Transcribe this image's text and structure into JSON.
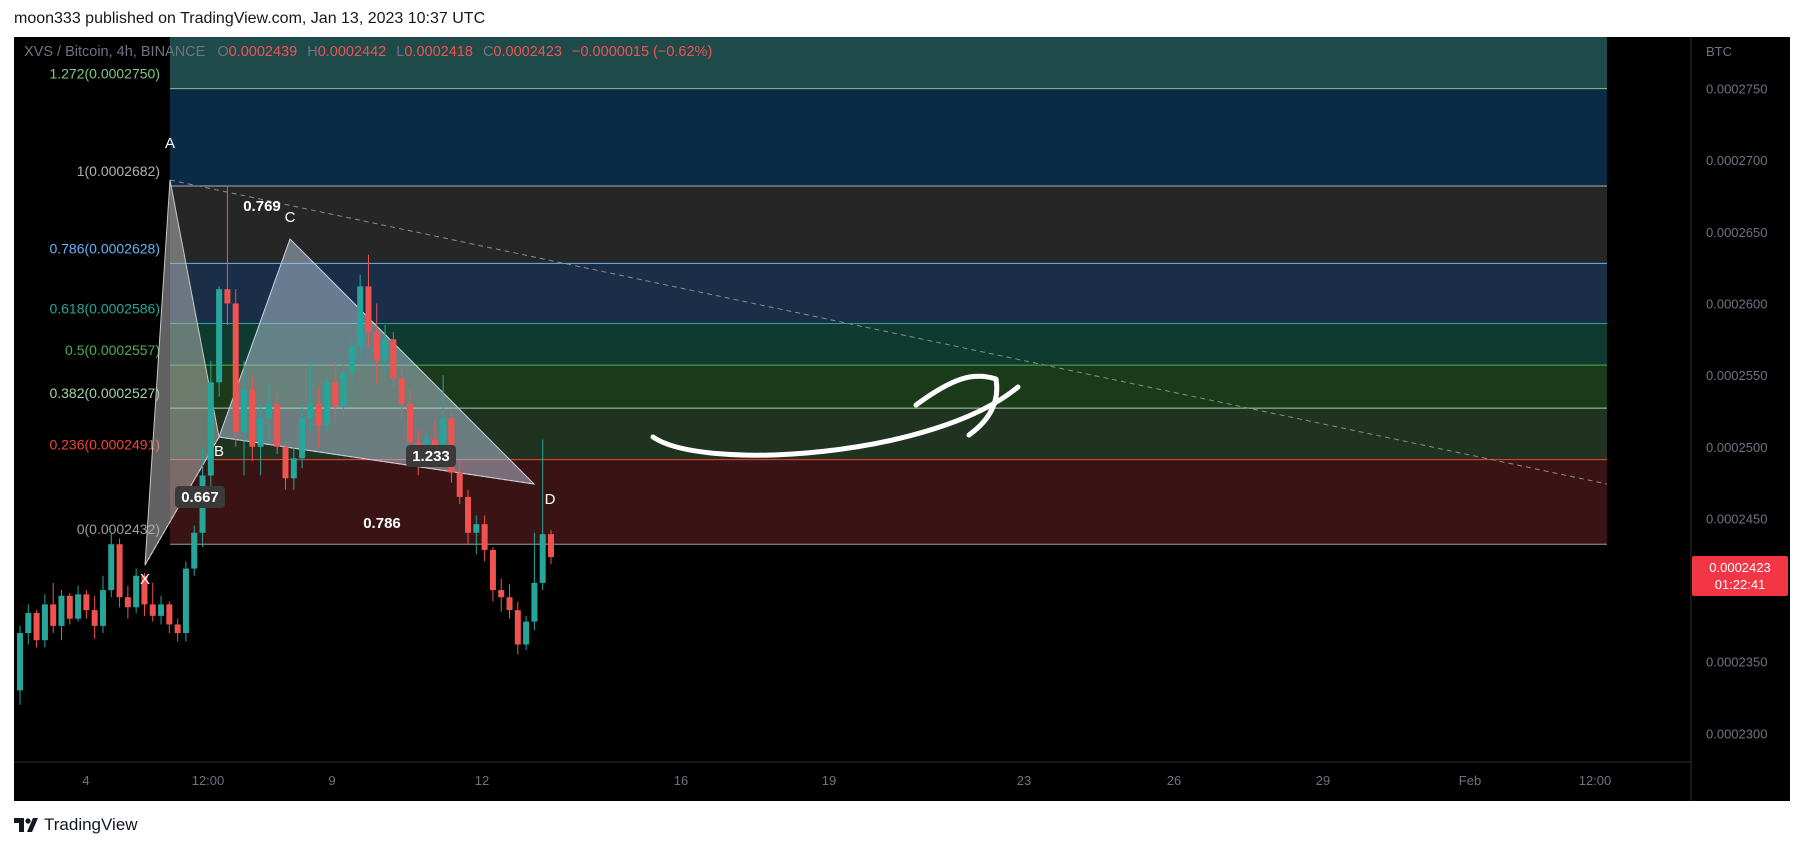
{
  "header": {
    "published_text": "moon333 published on TradingView.com, Jan 13, 2023 10:37 UTC"
  },
  "footer": {
    "brand": "TradingView"
  },
  "legend": {
    "symbol": "XVS / Bitcoin, 4h, BINANCE",
    "o_label": "O",
    "o_value": "0.0002439",
    "h_label": "H",
    "h_value": "0.0002442",
    "l_label": "L",
    "l_value": "0.0002418",
    "c_label": "C",
    "c_value": "0.0002423",
    "change": "−0.0000015 (−0.62%)"
  },
  "colors": {
    "up": "#26a69a",
    "down": "#ef5350",
    "background": "#000000",
    "price_badge": "#f23645"
  },
  "chart_data": {
    "type": "candlestick",
    "currency_label": "BTC",
    "ylim": [
      0.000228,
      0.0002786
    ],
    "y_ticks": [
      "0.0002750",
      "0.0002700",
      "0.0002650",
      "0.0002600",
      "0.0002550",
      "0.0002500",
      "0.0002450",
      "0.0002400",
      "0.0002350",
      "0.0002300"
    ],
    "x_ticks": [
      "4",
      "12:00",
      "9",
      "12",
      "16",
      "19",
      "23",
      "26",
      "29",
      "Feb",
      "12:00"
    ],
    "last_price": "0.0002423",
    "countdown": "01:22:41",
    "fib_levels": [
      {
        "ratio": "1.272",
        "price": "0.0002750",
        "label": "1.272(0.0002750)",
        "color": "#81c784"
      },
      {
        "ratio": "1",
        "price": "0.0002682",
        "label": "1(0.0002682)",
        "color": "#b0b0b0"
      },
      {
        "ratio": "0.786",
        "price": "0.0002628",
        "label": "0.786(0.0002628)",
        "color": "#64b5f6"
      },
      {
        "ratio": "0.618",
        "price": "0.0002586",
        "label": "0.618(0.0002586)",
        "color": "#26a69a"
      },
      {
        "ratio": "0.5",
        "price": "0.0002557",
        "label": "0.5(0.0002557)",
        "color": "#4caf50"
      },
      {
        "ratio": "0.382",
        "price": "0.0002527",
        "label": "0.382(0.0002527)",
        "color": "#a5d6a7"
      },
      {
        "ratio": "0.236",
        "price": "0.0002491",
        "label": "0.236(0.0002491)",
        "color": "#f44336"
      },
      {
        "ratio": "0",
        "price": "0.0002432",
        "label": "0(0.0002432)",
        "color": "#9e9e9e"
      }
    ],
    "pattern_points": [
      {
        "label": "X",
        "price": 0.0002363
      },
      {
        "label": "A",
        "price": 0.0002682
      },
      {
        "label": "B",
        "price": 0.000247
      },
      {
        "label": "C",
        "price": 0.0002634
      },
      {
        "label": "D",
        "price": 0.0002432
      }
    ],
    "pattern_ratios": [
      "0.667",
      "0.769",
      "0.786",
      "1.233"
    ],
    "candles": [
      [
        0.000233,
        0.0002375,
        0.000232,
        0.000237
      ],
      [
        0.000237,
        0.000239,
        0.0002362,
        0.0002384
      ],
      [
        0.0002384,
        0.0002386,
        0.000236,
        0.0002365
      ],
      [
        0.0002365,
        0.0002397,
        0.000236,
        0.000239
      ],
      [
        0.000239,
        0.0002405,
        0.000237,
        0.0002375
      ],
      [
        0.0002375,
        0.00024,
        0.0002365,
        0.0002396
      ],
      [
        0.0002396,
        0.0002398,
        0.0002376,
        0.000238
      ],
      [
        0.000238,
        0.0002403,
        0.0002378,
        0.0002397
      ],
      [
        0.0002397,
        0.00024,
        0.000238,
        0.0002386
      ],
      [
        0.0002386,
        0.0002396,
        0.0002366,
        0.0002375
      ],
      [
        0.0002375,
        0.000241,
        0.000237,
        0.00024
      ],
      [
        0.00024,
        0.000244,
        0.0002395,
        0.0002432
      ],
      [
        0.0002432,
        0.0002436,
        0.0002388,
        0.0002395
      ],
      [
        0.0002395,
        0.0002403,
        0.000238,
        0.0002388
      ],
      [
        0.0002388,
        0.0002415,
        0.0002384,
        0.000241
      ],
      [
        0.000241,
        0.0002412,
        0.0002382,
        0.000239
      ],
      [
        0.000239,
        0.0002405,
        0.0002378,
        0.0002382
      ],
      [
        0.0002382,
        0.0002396,
        0.0002376,
        0.000239
      ],
      [
        0.000239,
        0.0002392,
        0.000237,
        0.0002376
      ],
      [
        0.0002376,
        0.000238,
        0.0002364,
        0.000237
      ],
      [
        0.000237,
        0.000242,
        0.0002364,
        0.0002415
      ],
      [
        0.0002415,
        0.0002445,
        0.000241,
        0.000244
      ],
      [
        0.000244,
        0.00025,
        0.000243,
        0.000248
      ],
      [
        0.000248,
        0.000256,
        0.000247,
        0.0002545
      ],
      [
        0.0002545,
        0.0002612,
        0.0002535,
        0.000261
      ],
      [
        0.000261,
        0.0002682,
        0.0002585,
        0.00026
      ],
      [
        0.00026,
        0.000261,
        0.00025,
        0.000251
      ],
      [
        0.000251,
        0.000256,
        0.000248,
        0.000254
      ],
      [
        0.000254,
        0.000255,
        0.000249,
        0.00025
      ],
      [
        0.00025,
        0.000253,
        0.000248,
        0.000252
      ],
      [
        0.000252,
        0.0002545,
        0.0002505,
        0.000253
      ],
      [
        0.000253,
        0.0002538,
        0.0002495,
        0.00025
      ],
      [
        0.00025,
        0.0002505,
        0.000247,
        0.0002478
      ],
      [
        0.0002478,
        0.00025,
        0.000247,
        0.0002492
      ],
      [
        0.0002492,
        0.000253,
        0.0002485,
        0.000252
      ],
      [
        0.000252,
        0.000256,
        0.000251,
        0.000253
      ],
      [
        0.000253,
        0.0002542,
        0.00025,
        0.0002515
      ],
      [
        0.0002515,
        0.000255,
        0.000251,
        0.0002545
      ],
      [
        0.0002545,
        0.000256,
        0.000252,
        0.0002528
      ],
      [
        0.0002528,
        0.0002558,
        0.0002522,
        0.0002552
      ],
      [
        0.0002552,
        0.0002575,
        0.000254,
        0.000257
      ],
      [
        0.000257,
        0.000262,
        0.000256,
        0.0002612
      ],
      [
        0.0002612,
        0.0002634,
        0.000257,
        0.000258
      ],
      [
        0.000258,
        0.00026,
        0.0002545,
        0.000256
      ],
      [
        0.000256,
        0.0002585,
        0.000255,
        0.0002575
      ],
      [
        0.0002575,
        0.000258,
        0.000254,
        0.0002548
      ],
      [
        0.0002548,
        0.0002556,
        0.000252,
        0.000253
      ],
      [
        0.000253,
        0.000254,
        0.0002495,
        0.0002503
      ],
      [
        0.0002503,
        0.0002512,
        0.000248,
        0.0002497
      ],
      [
        0.0002497,
        0.0002508,
        0.000249,
        0.0002505
      ],
      [
        0.0002505,
        0.0002518,
        0.0002494,
        0.0002498
      ],
      [
        0.0002498,
        0.000255,
        0.000249,
        0.000252
      ],
      [
        0.000252,
        0.0002525,
        0.0002475,
        0.0002482
      ],
      [
        0.0002482,
        0.000249,
        0.000246,
        0.0002465
      ],
      [
        0.0002465,
        0.000247,
        0.0002432,
        0.000244
      ],
      [
        0.000244,
        0.0002452,
        0.0002425,
        0.0002446
      ],
      [
        0.0002446,
        0.0002452,
        0.000242,
        0.0002428
      ],
      [
        0.0002428,
        0.000243,
        0.0002392,
        0.00024
      ],
      [
        0.00024,
        0.0002408,
        0.0002385,
        0.0002395
      ],
      [
        0.0002395,
        0.0002404,
        0.000238,
        0.0002386
      ],
      [
        0.0002386,
        0.0002392,
        0.0002355,
        0.0002362
      ],
      [
        0.0002362,
        0.0002382,
        0.0002358,
        0.0002378
      ],
      [
        0.0002378,
        0.000244,
        0.0002372,
        0.0002405
      ],
      [
        0.0002405,
        0.0002505,
        0.00024,
        0.0002439
      ],
      [
        0.0002439,
        0.0002442,
        0.0002418,
        0.0002423
      ]
    ]
  }
}
